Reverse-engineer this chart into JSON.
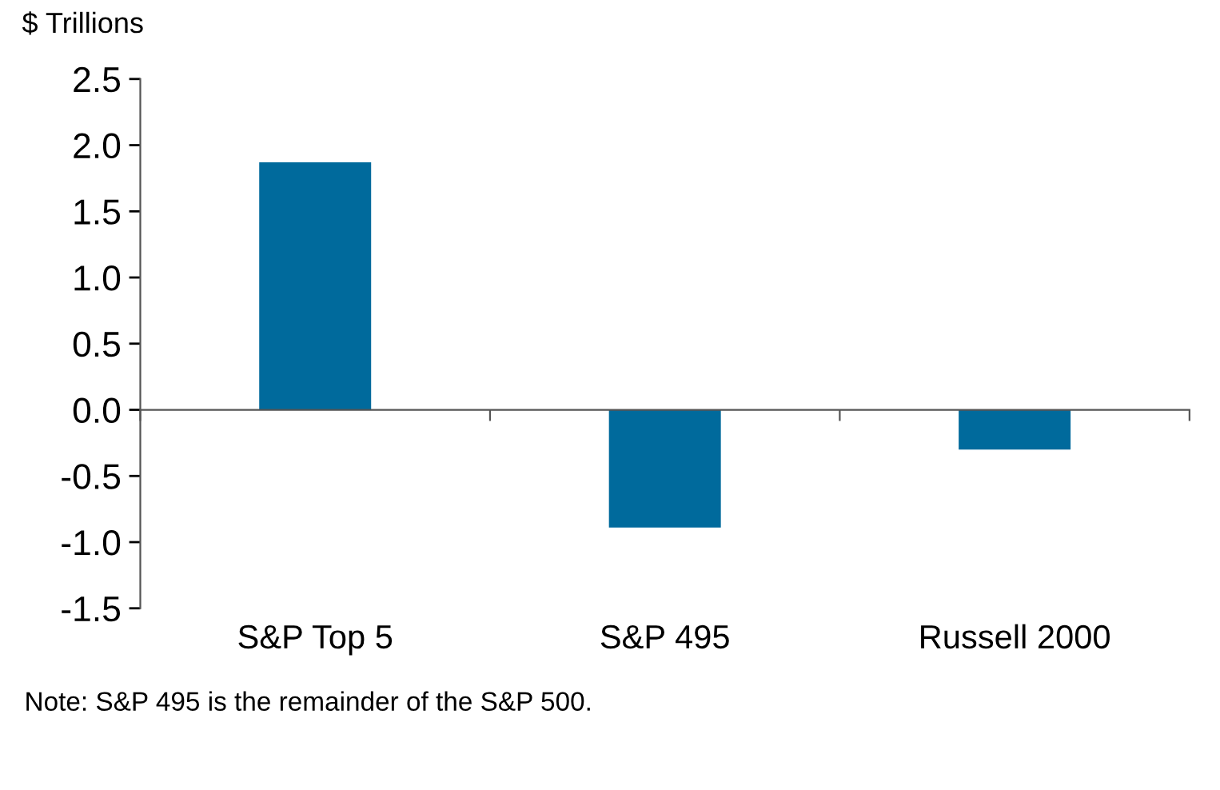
{
  "chart_data": {
    "type": "bar",
    "ylabel": "$ Trillions",
    "categories": [
      "S&P Top 5",
      "S&P 495",
      "Russell 2000"
    ],
    "values": [
      1.87,
      -0.89,
      -0.3
    ],
    "color": "#006a9c",
    "ylim": [
      -1.5,
      2.5
    ],
    "yticks": [
      {
        "value": -1.5,
        "label": "-1.5"
      },
      {
        "value": -1.0,
        "label": "-1.0"
      },
      {
        "value": -0.5,
        "label": "-0.5"
      },
      {
        "value": 0.0,
        "label": "0.0"
      },
      {
        "value": 0.5,
        "label": "0.5"
      },
      {
        "value": 1.0,
        "label": "1.0"
      },
      {
        "value": 1.5,
        "label": "1.5"
      },
      {
        "value": 2.0,
        "label": "2.0"
      },
      {
        "value": 2.5,
        "label": "2.5"
      }
    ],
    "annotations": [
      "Note: S&P 495 is the remainder of the S&P 500."
    ]
  }
}
